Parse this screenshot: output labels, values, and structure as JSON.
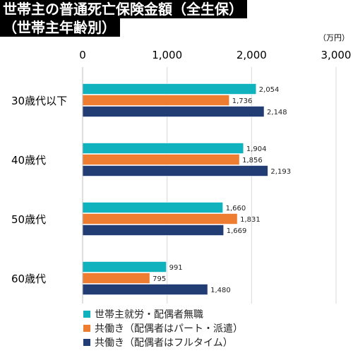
{
  "chart_data": {
    "type": "bar",
    "orientation": "horizontal",
    "title_lines": [
      "世帯主の普通死亡保険金額（全生保）",
      "（世帯主年齢別）"
    ],
    "unit": "（万円）",
    "categories": [
      "30歳代以下",
      "40歳代",
      "50歳代",
      "60歳代"
    ],
    "series": [
      {
        "name": "世帯主就労・配偶者無職",
        "color": "#0fb2bd",
        "values": [
          2054,
          1904,
          1660,
          991
        ],
        "labels": [
          "2,054",
          "1,904",
          "1,660",
          "991"
        ]
      },
      {
        "name": "共働き（配偶者はパート・派遣）",
        "color": "#ee7d31",
        "values": [
          1736,
          1856,
          1831,
          795
        ],
        "labels": [
          "1,736",
          "1,856",
          "1,831",
          "795"
        ]
      },
      {
        "name": "共働き（配偶者はフルタイム）",
        "color": "#213d73",
        "values": [
          2148,
          2193,
          1669,
          1480
        ],
        "labels": [
          "2,148",
          "2,193",
          "1,669",
          "1,480"
        ]
      }
    ],
    "xlim": [
      0,
      3000
    ],
    "xticks": [
      0,
      1000,
      2000,
      3000
    ],
    "xtick_labels": [
      "0",
      "1,000",
      "2,000",
      "3,000"
    ],
    "grid": true,
    "legend_position": "bottom"
  }
}
